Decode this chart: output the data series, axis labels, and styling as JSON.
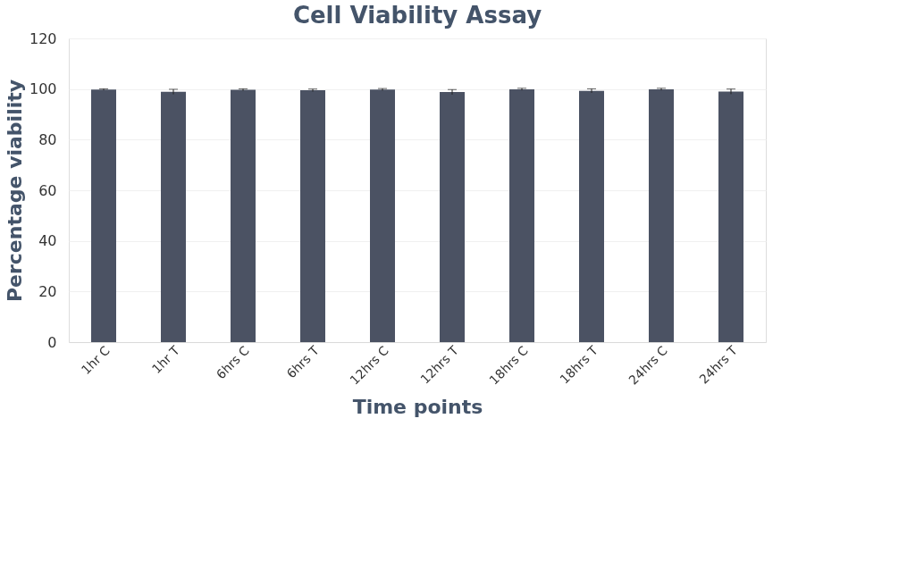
{
  "chart_data": {
    "type": "bar",
    "title": "Cell Viability Assay",
    "xlabel": "Time points",
    "ylabel": "Percentage viability",
    "categories": [
      "1hr C",
      "1hr T",
      "6hrs C",
      "6hrs T",
      "12hrs C",
      "12hrs T",
      "18hrs C",
      "18hrs T",
      "24hrs C",
      "24hrs T"
    ],
    "values": [
      99.8,
      98.9,
      99.7,
      99.5,
      99.8,
      98.8,
      99.9,
      99.3,
      99.9,
      99.0
    ],
    "errors": [
      0.3,
      1.0,
      0.4,
      0.5,
      0.4,
      1.0,
      0.4,
      0.8,
      0.4,
      1.0
    ],
    "color": "#4b5263",
    "ylim": [
      0,
      120
    ],
    "yticks": [
      0,
      20,
      40,
      60,
      80,
      100,
      120
    ],
    "grid": "y"
  }
}
